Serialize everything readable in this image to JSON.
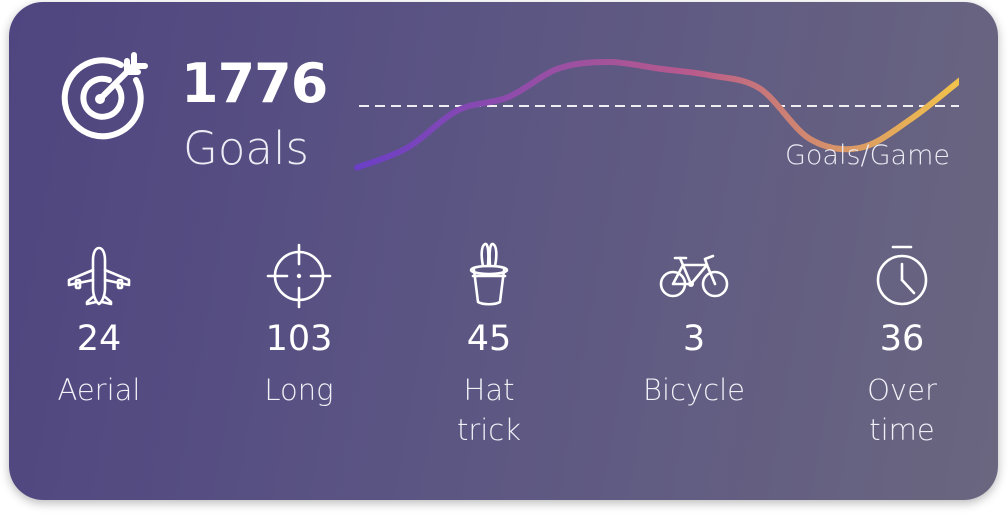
{
  "summary": {
    "total_goals": "1776",
    "total_label": "Goals",
    "chart_caption": "Goals/Game"
  },
  "icons": {
    "header": "target-icon",
    "aerial": "airplane-icon",
    "long": "crosshair-icon",
    "hat_trick": "magic-hat-icon",
    "bicycle": "bicycle-icon",
    "over_time": "stopwatch-icon"
  },
  "stats": [
    {
      "value": "24",
      "label": "Aerial"
    },
    {
      "value": "103",
      "label": "Long"
    },
    {
      "value": "45",
      "label": "Hat\ntrick"
    },
    {
      "value": "3",
      "label": "Bicycle"
    },
    {
      "value": "36",
      "label": "Over\ntime"
    }
  ],
  "colors": {
    "card_start": "#4f4580",
    "card_end": "#6a6680",
    "trend_start": "#6b3fc6",
    "trend_mid": "#b85a8c",
    "trend_end": "#f2c44a",
    "reference_line": "#ffffff"
  },
  "chart_data": {
    "type": "line",
    "title": "",
    "xlabel": "",
    "ylabel": "Goals/Game",
    "x": [
      1,
      2,
      3,
      4,
      5,
      6,
      7,
      8,
      9,
      10,
      11,
      12,
      13
    ],
    "series": [
      {
        "values": [
          0.1,
          0.55,
          1.4,
          1.7,
          2.35,
          2.5,
          2.35,
          2.2,
          1.9,
          0.75,
          0.55,
          1.2,
          2.1
        ]
      }
    ],
    "reference_line": 1.5,
    "ylim": [
      0,
      3
    ],
    "grid": false,
    "legend": "none"
  }
}
